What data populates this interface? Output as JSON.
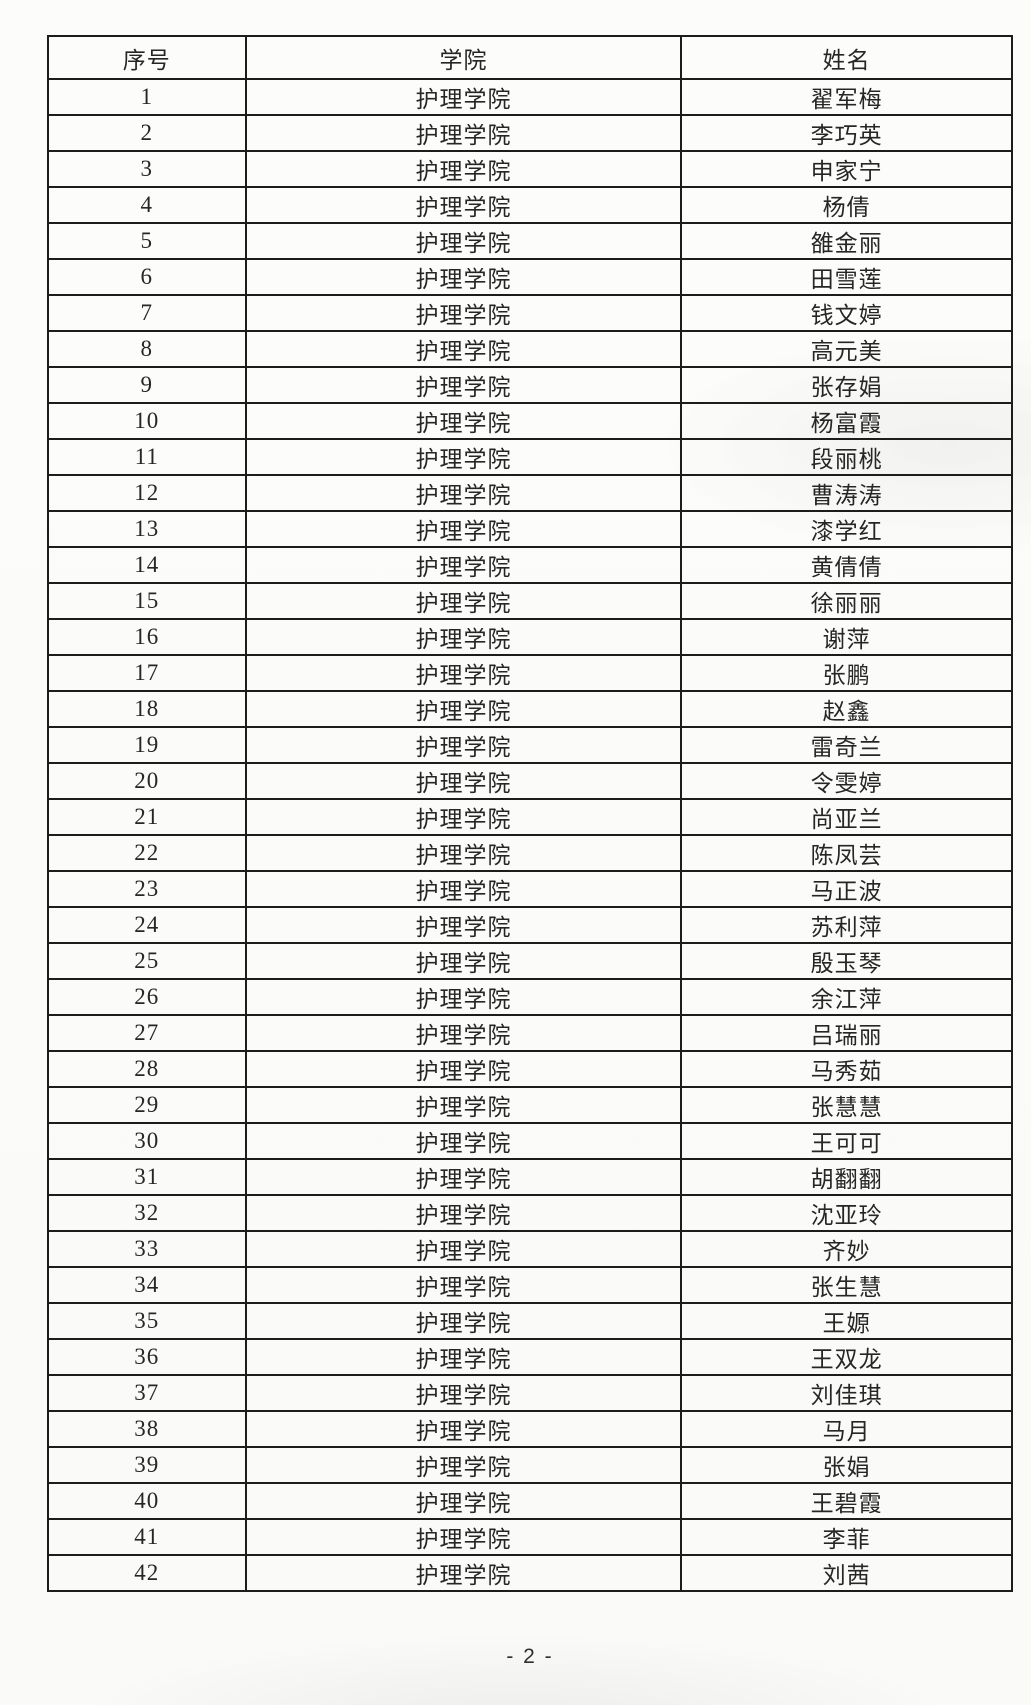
{
  "document": {
    "footer": {
      "page_number_label": "- 2 -"
    },
    "table": {
      "headers": [
        "序号",
        "学院",
        "姓名"
      ],
      "rows": [
        {
          "no": "1",
          "college": "护理学院",
          "name": "翟军梅"
        },
        {
          "no": "2",
          "college": "护理学院",
          "name": "李巧英"
        },
        {
          "no": "3",
          "college": "护理学院",
          "name": "申家宁"
        },
        {
          "no": "4",
          "college": "护理学院",
          "name": "杨倩"
        },
        {
          "no": "5",
          "college": "护理学院",
          "name": "雒金丽"
        },
        {
          "no": "6",
          "college": "护理学院",
          "name": "田雪莲"
        },
        {
          "no": "7",
          "college": "护理学院",
          "name": "钱文婷"
        },
        {
          "no": "8",
          "college": "护理学院",
          "name": "高元美"
        },
        {
          "no": "9",
          "college": "护理学院",
          "name": "张存娟"
        },
        {
          "no": "10",
          "college": "护理学院",
          "name": "杨富霞"
        },
        {
          "no": "11",
          "college": "护理学院",
          "name": "段丽桃"
        },
        {
          "no": "12",
          "college": "护理学院",
          "name": "曹涛涛"
        },
        {
          "no": "13",
          "college": "护理学院",
          "name": "漆学红"
        },
        {
          "no": "14",
          "college": "护理学院",
          "name": "黄倩倩"
        },
        {
          "no": "15",
          "college": "护理学院",
          "name": "徐丽丽"
        },
        {
          "no": "16",
          "college": "护理学院",
          "name": "谢萍"
        },
        {
          "no": "17",
          "college": "护理学院",
          "name": "张鹏"
        },
        {
          "no": "18",
          "college": "护理学院",
          "name": "赵鑫"
        },
        {
          "no": "19",
          "college": "护理学院",
          "name": "雷奇兰"
        },
        {
          "no": "20",
          "college": "护理学院",
          "name": "令雯婷"
        },
        {
          "no": "21",
          "college": "护理学院",
          "name": "尚亚兰"
        },
        {
          "no": "22",
          "college": "护理学院",
          "name": "陈凤芸"
        },
        {
          "no": "23",
          "college": "护理学院",
          "name": "马正波"
        },
        {
          "no": "24",
          "college": "护理学院",
          "name": "苏利萍"
        },
        {
          "no": "25",
          "college": "护理学院",
          "name": "殷玉琴"
        },
        {
          "no": "26",
          "college": "护理学院",
          "name": "余江萍"
        },
        {
          "no": "27",
          "college": "护理学院",
          "name": "吕瑞丽"
        },
        {
          "no": "28",
          "college": "护理学院",
          "name": "马秀茹"
        },
        {
          "no": "29",
          "college": "护理学院",
          "name": "张慧慧"
        },
        {
          "no": "30",
          "college": "护理学院",
          "name": "王可可"
        },
        {
          "no": "31",
          "college": "护理学院",
          "name": "胡翻翻"
        },
        {
          "no": "32",
          "college": "护理学院",
          "name": "沈亚玲"
        },
        {
          "no": "33",
          "college": "护理学院",
          "name": "齐妙"
        },
        {
          "no": "34",
          "college": "护理学院",
          "name": "张生慧"
        },
        {
          "no": "35",
          "college": "护理学院",
          "name": "王嫄"
        },
        {
          "no": "36",
          "college": "护理学院",
          "name": "王双龙"
        },
        {
          "no": "37",
          "college": "护理学院",
          "name": "刘佳琪"
        },
        {
          "no": "38",
          "college": "护理学院",
          "name": "马月"
        },
        {
          "no": "39",
          "college": "护理学院",
          "name": "张娟"
        },
        {
          "no": "40",
          "college": "护理学院",
          "name": "王碧霞"
        },
        {
          "no": "41",
          "college": "护理学院",
          "name": "李菲"
        },
        {
          "no": "42",
          "college": "护理学院",
          "name": "刘茜"
        }
      ]
    }
  }
}
